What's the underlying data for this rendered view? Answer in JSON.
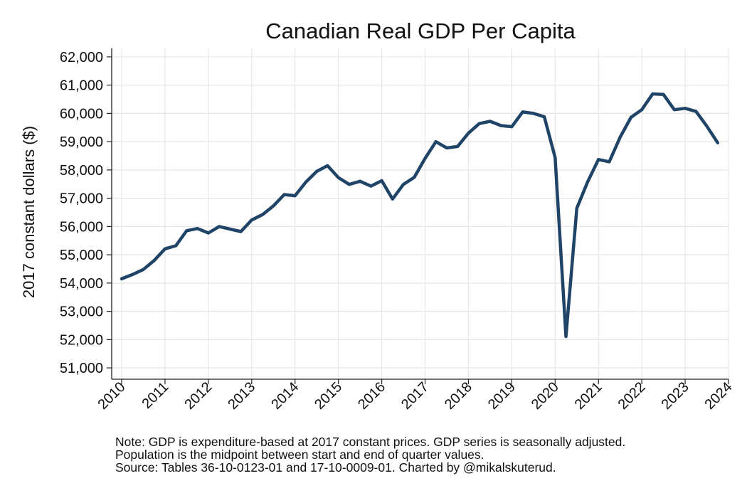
{
  "chart_data": {
    "type": "line",
    "title": "Canadian Real GDP Per Capita",
    "xlabel": "",
    "ylabel": "2017 constant dollars ($)",
    "xlim": [
      2010,
      2024
    ],
    "ylim": [
      50600,
      62300
    ],
    "x_ticks": [
      "2010",
      "2011",
      "2012",
      "2013",
      "2014",
      "2015",
      "2016",
      "2017",
      "2018",
      "2019",
      "2020",
      "2021",
      "2022",
      "2023",
      "2024"
    ],
    "y_ticks": [
      51000,
      52000,
      53000,
      54000,
      55000,
      56000,
      57000,
      58000,
      59000,
      60000,
      61000,
      62000
    ],
    "y_tick_labels": [
      "51,000",
      "52,000",
      "53,000",
      "54,000",
      "55,000",
      "56,000",
      "57,000",
      "58,000",
      "59,000",
      "60,000",
      "61,000",
      "62,000"
    ],
    "grid": true,
    "line_color": "#1f4467",
    "series": [
      {
        "x": [
          2010.0,
          2010.25,
          2010.5,
          2010.75,
          2011.0,
          2011.25,
          2011.5,
          2011.75,
          2012.0,
          2012.25,
          2012.5,
          2012.75,
          2013.0,
          2013.25,
          2013.5,
          2013.75,
          2014.0,
          2014.25,
          2014.5,
          2014.75,
          2015.0,
          2015.25,
          2015.5,
          2015.75,
          2016.0,
          2016.25,
          2016.5,
          2016.75,
          2017.0,
          2017.25,
          2017.5,
          2017.75,
          2018.0,
          2018.25,
          2018.5,
          2018.75,
          2019.0,
          2019.25,
          2019.5,
          2019.75,
          2020.0,
          2020.25,
          2020.5,
          2020.75,
          2021.0,
          2021.25,
          2021.5,
          2021.75,
          2022.0,
          2022.25,
          2022.5,
          2022.75,
          2023.0,
          2023.25,
          2023.5,
          2023.75
        ],
        "values": [
          54150,
          54300,
          54480,
          54800,
          55210,
          55320,
          55850,
          55930,
          55770,
          56000,
          55910,
          55820,
          56230,
          56420,
          56730,
          57130,
          57090,
          57570,
          57950,
          58150,
          57730,
          57490,
          57600,
          57430,
          57620,
          56970,
          57490,
          57740,
          58410,
          59000,
          58780,
          58830,
          59300,
          59640,
          59720,
          59570,
          59530,
          60050,
          60000,
          59880,
          58440,
          52110,
          56650,
          57580,
          58370,
          58290,
          59160,
          59860,
          60130,
          60690,
          60670,
          60130,
          60180,
          60070,
          59550,
          58960
        ]
      }
    ]
  },
  "notes": {
    "line1": "Note: GDP is expenditure-based at 2017 constant prices. GDP series is seasonally adjusted.",
    "line2": "Population is the midpoint between start and end of quarter values.",
    "line3": "Source: Tables 36-10-0123-01 and 17-10-0009-01. Charted by @mikalskuterud."
  }
}
